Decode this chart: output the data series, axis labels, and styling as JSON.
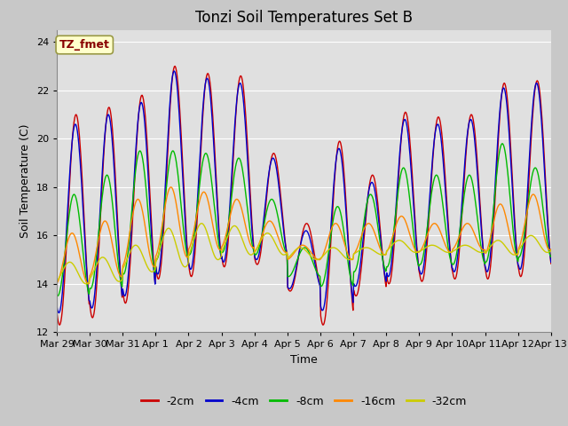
{
  "title": "Tonzi Soil Temperatures Set B",
  "xlabel": "Time",
  "ylabel": "Soil Temperature (C)",
  "annotation": "TZ_fmet",
  "ylim": [
    12,
    24.5
  ],
  "yticks": [
    12,
    14,
    16,
    18,
    20,
    22,
    24
  ],
  "xlabels": [
    "Mar 29",
    "Mar 30",
    "Mar 31",
    "Apr 1",
    "Apr 2",
    "Apr 3",
    "Apr 4",
    "Apr 5",
    "Apr 6",
    "Apr 7",
    "Apr 8",
    "Apr 9",
    "Apr 10",
    "Apr 11",
    "Apr 12",
    "Apr 13"
  ],
  "series_colors": [
    "#cc0000",
    "#0000cc",
    "#00bb00",
    "#ff8800",
    "#cccc00"
  ],
  "series_labels": [
    "-2cm",
    "-4cm",
    "-8cm",
    "-16cm",
    "-32cm"
  ],
  "fig_bg_color": "#c8c8c8",
  "plot_bg_color": "#e0e0e0",
  "n_days": 15,
  "points_per_day": 48,
  "title_fontsize": 12,
  "label_fontsize": 9,
  "tick_fontsize": 8,
  "linewidth": 1.0
}
